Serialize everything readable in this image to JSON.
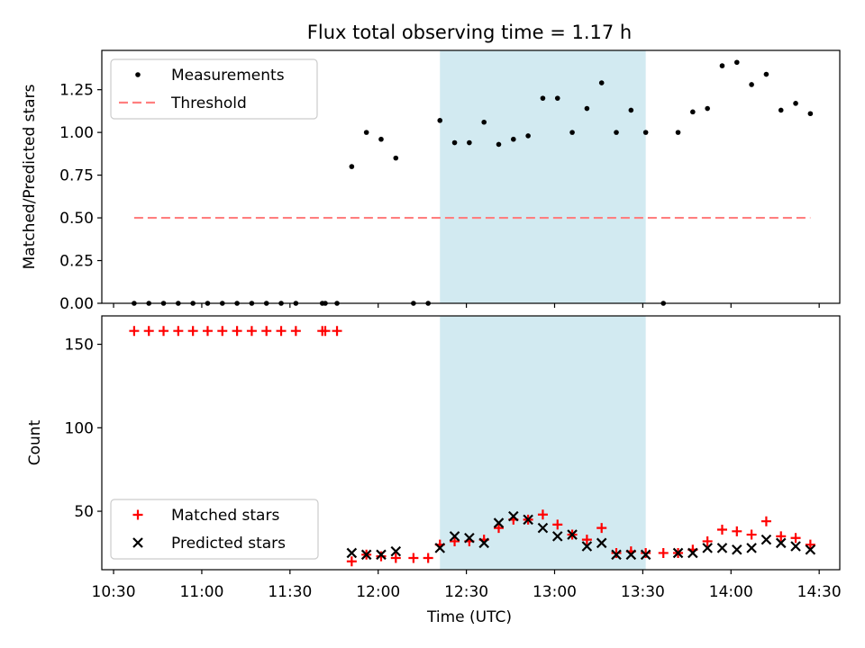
{
  "title": "Flux total observing time = 1.17 h",
  "xlabel": "Time (UTC)",
  "x_ticks": [
    "10:30",
    "11:00",
    "11:30",
    "12:00",
    "12:30",
    "13:00",
    "13:30",
    "14:00",
    "14:30"
  ],
  "colors": {
    "measure": "#000000",
    "threshold": "#ff7f7f",
    "matched": "#ff0000",
    "predicted": "#000000",
    "shade": "#add8e6"
  },
  "chart_data": [
    {
      "type": "scatter",
      "ylabel": "Matched/Predicted stars",
      "ylim": [
        0,
        1.48
      ],
      "y_ticks": [
        "0.00",
        "0.25",
        "0.50",
        "0.75",
        "1.00",
        "1.25"
      ],
      "y_tick_values": [
        0,
        0.25,
        0.5,
        0.75,
        1.0,
        1.25
      ],
      "legend_position": "top-left",
      "shaded_interval": [
        "12:21",
        "13:31"
      ],
      "series": [
        {
          "name": "Measurements",
          "marker": "dot",
          "points": [
            [
              "10:37",
              0
            ],
            [
              "10:42",
              0
            ],
            [
              "10:47",
              0
            ],
            [
              "10:52",
              0
            ],
            [
              "10:57",
              0
            ],
            [
              "11:02",
              0
            ],
            [
              "11:07",
              0
            ],
            [
              "11:12",
              0
            ],
            [
              "11:17",
              0
            ],
            [
              "11:22",
              0
            ],
            [
              "11:27",
              0
            ],
            [
              "11:32",
              0
            ],
            [
              "11:41",
              0
            ],
            [
              "11:42",
              0
            ],
            [
              "11:46",
              0
            ],
            [
              "11:51",
              0.8
            ],
            [
              "11:56",
              1.0
            ],
            [
              "12:01",
              0.96
            ],
            [
              "12:06",
              0.85
            ],
            [
              "12:12",
              0
            ],
            [
              "12:17",
              0
            ],
            [
              "12:21",
              1.07
            ],
            [
              "12:26",
              0.94
            ],
            [
              "12:31",
              0.94
            ],
            [
              "12:36",
              1.06
            ],
            [
              "12:41",
              0.93
            ],
            [
              "12:46",
              0.96
            ],
            [
              "12:51",
              0.98
            ],
            [
              "12:56",
              1.2
            ],
            [
              "13:01",
              1.2
            ],
            [
              "13:06",
              1.0
            ],
            [
              "13:11",
              1.14
            ],
            [
              "13:16",
              1.29
            ],
            [
              "13:21",
              1.0
            ],
            [
              "13:26",
              1.13
            ],
            [
              "13:31",
              1.0
            ],
            [
              "13:37",
              0
            ],
            [
              "13:42",
              1.0
            ],
            [
              "13:47",
              1.12
            ],
            [
              "13:52",
              1.14
            ],
            [
              "13:57",
              1.39
            ],
            [
              "14:02",
              1.41
            ],
            [
              "14:07",
              1.28
            ],
            [
              "14:12",
              1.34
            ],
            [
              "14:17",
              1.13
            ],
            [
              "14:22",
              1.17
            ],
            [
              "14:27",
              1.11
            ]
          ]
        },
        {
          "name": "Threshold",
          "marker": "dashed-line",
          "points": [
            [
              "10:37",
              0.5
            ],
            [
              "14:27",
              0.5
            ]
          ]
        }
      ]
    },
    {
      "type": "scatter",
      "ylabel": "Count",
      "ylim": [
        15,
        167
      ],
      "y_ticks": [
        "50",
        "100",
        "150"
      ],
      "y_tick_values": [
        50,
        100,
        150
      ],
      "legend_position": "bottom-left",
      "shaded_interval": [
        "12:21",
        "13:31"
      ],
      "series": [
        {
          "name": "Matched stars",
          "marker": "plus",
          "points": [
            [
              "10:37",
              158
            ],
            [
              "10:42",
              158
            ],
            [
              "10:47",
              158
            ],
            [
              "10:52",
              158
            ],
            [
              "10:57",
              158
            ],
            [
              "11:02",
              158
            ],
            [
              "11:07",
              158
            ],
            [
              "11:12",
              158
            ],
            [
              "11:17",
              158
            ],
            [
              "11:22",
              158
            ],
            [
              "11:27",
              158
            ],
            [
              "11:32",
              158
            ],
            [
              "11:41",
              158
            ],
            [
              "11:42",
              158
            ],
            [
              "11:46",
              158
            ],
            [
              "11:51",
              20
            ],
            [
              "11:56",
              24
            ],
            [
              "12:01",
              23
            ],
            [
              "12:06",
              22
            ],
            [
              "12:12",
              22
            ],
            [
              "12:17",
              22
            ],
            [
              "12:21",
              30
            ],
            [
              "12:26",
              32
            ],
            [
              "12:31",
              32
            ],
            [
              "12:36",
              33
            ],
            [
              "12:41",
              40
            ],
            [
              "12:46",
              45
            ],
            [
              "12:51",
              45
            ],
            [
              "12:56",
              48
            ],
            [
              "13:01",
              42
            ],
            [
              "13:06",
              36
            ],
            [
              "13:11",
              33
            ],
            [
              "13:16",
              40
            ],
            [
              "13:21",
              25
            ],
            [
              "13:26",
              26
            ],
            [
              "13:31",
              25
            ],
            [
              "13:37",
              25
            ],
            [
              "13:42",
              25
            ],
            [
              "13:47",
              27
            ],
            [
              "13:52",
              32
            ],
            [
              "13:57",
              39
            ],
            [
              "14:02",
              38
            ],
            [
              "14:07",
              36
            ],
            [
              "14:12",
              44
            ],
            [
              "14:17",
              35
            ],
            [
              "14:22",
              34
            ],
            [
              "14:27",
              30
            ]
          ]
        },
        {
          "name": "Predicted stars",
          "marker": "x",
          "points": [
            [
              "11:51",
              25
            ],
            [
              "11:56",
              24
            ],
            [
              "12:01",
              24
            ],
            [
              "12:06",
              26
            ],
            [
              "12:21",
              28
            ],
            [
              "12:26",
              35
            ],
            [
              "12:31",
              34
            ],
            [
              "12:36",
              31
            ],
            [
              "12:41",
              43
            ],
            [
              "12:46",
              47
            ],
            [
              "12:51",
              45
            ],
            [
              "12:56",
              40
            ],
            [
              "13:01",
              35
            ],
            [
              "13:06",
              36
            ],
            [
              "13:11",
              29
            ],
            [
              "13:16",
              31
            ],
            [
              "13:21",
              24
            ],
            [
              "13:26",
              24
            ],
            [
              "13:31",
              24
            ],
            [
              "13:42",
              25
            ],
            [
              "13:47",
              25
            ],
            [
              "13:52",
              28
            ],
            [
              "13:57",
              28
            ],
            [
              "14:02",
              27
            ],
            [
              "14:07",
              28
            ],
            [
              "14:12",
              33
            ],
            [
              "14:17",
              31
            ],
            [
              "14:22",
              29
            ],
            [
              "14:27",
              27
            ]
          ]
        }
      ]
    }
  ]
}
